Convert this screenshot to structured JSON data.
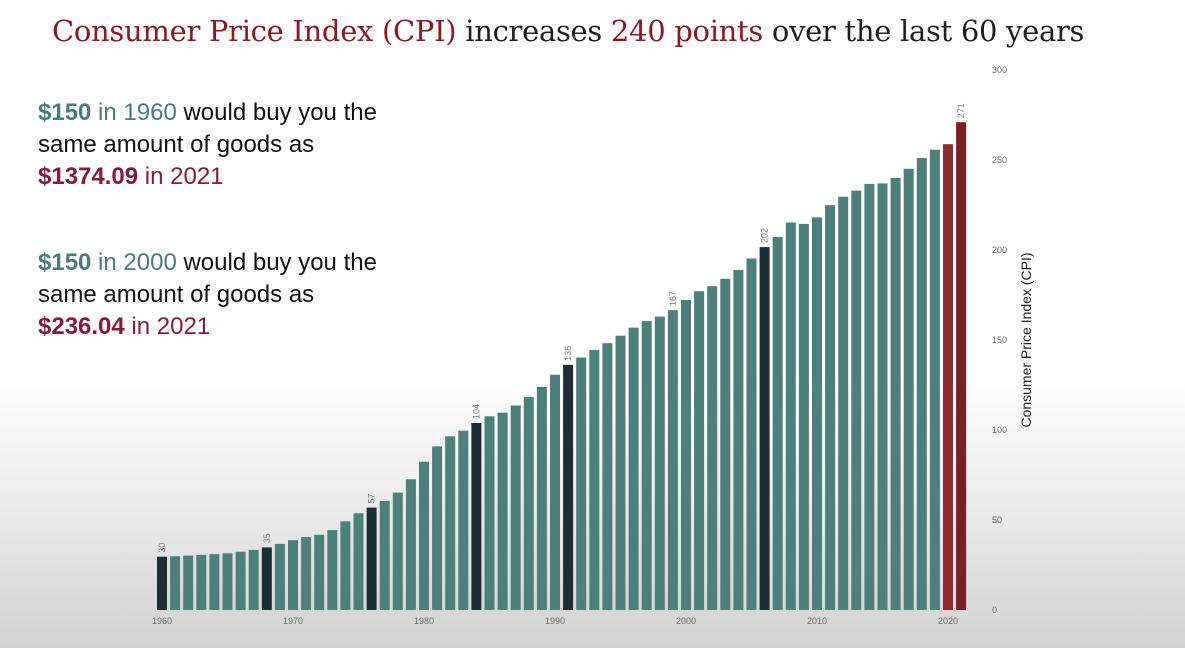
{
  "title": {
    "prefix": "Consumer Price Index (CPI)",
    "middle": " increases ",
    "highlight": "240 points",
    "suffix": " over the last 60 years"
  },
  "callouts": [
    {
      "amount": "$150",
      "t1": " in ",
      "year": "1960",
      "t2": " would buy you the",
      "line2": "same amount of goods as",
      "amount2": "$1374.09",
      "t3": " in 2021"
    },
    {
      "amount": "$150",
      "t1": " in ",
      "year": "2000",
      "t2": " would buy you the",
      "line2": "same amount of goods as",
      "amount2": "$236.04",
      "t3": " in 2021"
    }
  ],
  "colors": {
    "bar": "#4d7f7b",
    "highlight_bar": "#1c2d34",
    "last_bar": "#7a1f26",
    "second_last_bar": "#8f2a30",
    "axis_text": "#666666"
  },
  "chart_data": {
    "type": "bar",
    "x": [
      1960,
      1961,
      1962,
      1963,
      1964,
      1965,
      1966,
      1967,
      1968,
      1969,
      1970,
      1971,
      1972,
      1973,
      1974,
      1975,
      1976,
      1977,
      1978,
      1979,
      1980,
      1981,
      1982,
      1983,
      1984,
      1985,
      1986,
      1987,
      1988,
      1989,
      1990,
      1991,
      1992,
      1993,
      1994,
      1995,
      1996,
      1997,
      1998,
      1999,
      2000,
      2001,
      2002,
      2003,
      2004,
      2005,
      2006,
      2007,
      2008,
      2009,
      2010,
      2011,
      2012,
      2013,
      2014,
      2015,
      2016,
      2017,
      2018,
      2019,
      2020,
      2021
    ],
    "values": [
      29.6,
      29.9,
      30.2,
      30.6,
      31.0,
      31.5,
      32.4,
      33.4,
      34.8,
      36.7,
      38.8,
      40.5,
      41.8,
      44.4,
      49.3,
      53.8,
      56.9,
      60.6,
      65.2,
      72.6,
      82.4,
      90.9,
      96.5,
      99.6,
      103.9,
      107.6,
      109.6,
      113.6,
      118.3,
      124.0,
      130.7,
      136.2,
      140.3,
      144.5,
      148.2,
      152.4,
      156.9,
      160.5,
      163.0,
      166.6,
      172.2,
      177.1,
      179.9,
      184.0,
      188.9,
      195.3,
      201.6,
      207.3,
      215.3,
      214.5,
      218.1,
      224.9,
      229.6,
      233.0,
      236.7,
      237.0,
      240.0,
      245.1,
      251.1,
      255.7,
      258.8,
      271.0
    ],
    "highlighted_years": [
      1960,
      1968,
      1976,
      1984,
      1991,
      2006
    ],
    "data_labels": [
      {
        "year": 1960,
        "label": "30"
      },
      {
        "year": 1968,
        "label": "35"
      },
      {
        "year": 1976,
        "label": "57"
      },
      {
        "year": 1984,
        "label": "104"
      },
      {
        "year": 1991,
        "label": "136"
      },
      {
        "year": 1999,
        "label": "167"
      },
      {
        "year": 2006,
        "label": "202"
      },
      {
        "year": 2021,
        "label": "271"
      }
    ],
    "xticks": [
      "1960",
      "1970",
      "1980",
      "1990",
      "2000",
      "2010",
      "2020"
    ],
    "yticks": [
      "0",
      "50",
      "100",
      "150",
      "200",
      "250",
      "300"
    ],
    "ylim": [
      0,
      300
    ],
    "ylabel": "Consumer Price Index (CPI)",
    "y_axis_position": "right",
    "grid": false
  }
}
